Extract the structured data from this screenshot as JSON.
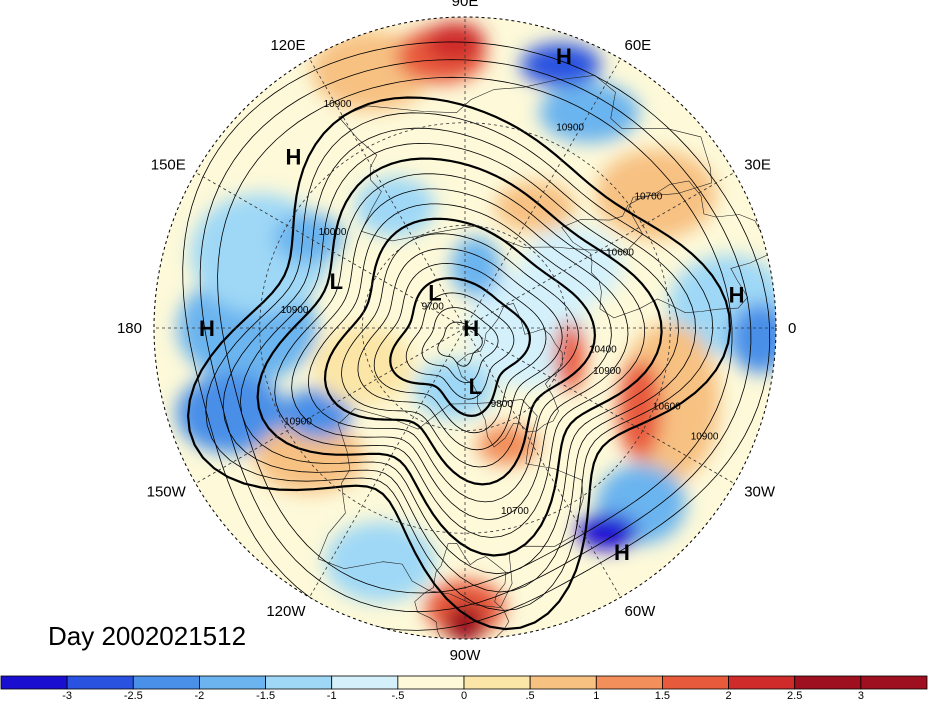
{
  "map": {
    "projection": "polar-stereographic-north",
    "longitude_labels": [
      {
        "text": "90E",
        "lon": 90
      },
      {
        "text": "60E",
        "lon": 60
      },
      {
        "text": "30E",
        "lon": 30
      },
      {
        "text": "0",
        "lon": 0
      },
      {
        "text": "30W",
        "lon": -30
      },
      {
        "text": "60W",
        "lon": -60
      },
      {
        "text": "90W",
        "lon": -90
      },
      {
        "text": "120W",
        "lon": -120
      },
      {
        "text": "150W",
        "lon": -150
      },
      {
        "text": "180",
        "lon": 180
      },
      {
        "text": "150E",
        "lon": 150
      },
      {
        "text": "120E",
        "lon": 120
      }
    ],
    "day_label": "Day 2002021512",
    "pressure_systems": [
      {
        "type": "H",
        "lon": 70,
        "lat_ring": 0.93
      },
      {
        "type": "H",
        "lon": 135,
        "lat_ring": 0.78
      },
      {
        "type": "H",
        "lon": 7,
        "lat_ring": 0.88
      },
      {
        "type": "H",
        "lon": 180,
        "lat_ring": 0.83
      },
      {
        "type": "H",
        "lon": 0,
        "lat_ring": 0.02
      },
      {
        "type": "H",
        "lon": -55,
        "lat_ring": 0.88
      },
      {
        "type": "L",
        "lon": 160,
        "lat_ring": 0.44
      },
      {
        "type": "L",
        "lon": 130,
        "lat_ring": 0.15
      },
      {
        "type": "L",
        "lon": -80,
        "lat_ring": 0.19
      }
    ],
    "contour_labels": [
      "10900",
      "10900",
      "10700",
      "10600",
      "10400",
      "10900",
      "9800",
      "9700",
      "10700",
      "10600",
      "10900",
      "10000",
      "10900",
      "10900"
    ],
    "colors": {
      "neg_3": "#1a0fd1",
      "neg_25": "#2a52e0",
      "neg_2": "#4a8fe8",
      "neg_15": "#6bb4ef",
      "neg_1": "#9fd8f6",
      "neg_05": "#d4f1fb",
      "pos_0": "#fdf9d9",
      "pos_05": "#fbe6a7",
      "pos_1": "#f7c182",
      "pos_15": "#f28f5b",
      "pos_2": "#e85a3c",
      "pos_25": "#cf2b2b",
      "pos_3": "#9e0f1f"
    }
  },
  "colorbar": {
    "tick_labels": [
      "-3",
      "-2.5",
      "-2",
      "-1.5",
      "-1",
      "-.5",
      "0",
      ".5",
      "1",
      "1.5",
      "2",
      "2.5",
      "3"
    ],
    "color_keys": [
      "neg_3",
      "neg_25",
      "neg_2",
      "neg_15",
      "neg_1",
      "neg_05",
      "pos_0",
      "pos_05",
      "pos_1",
      "pos_15",
      "pos_2",
      "pos_25",
      "pos_3",
      "pos_3"
    ]
  }
}
